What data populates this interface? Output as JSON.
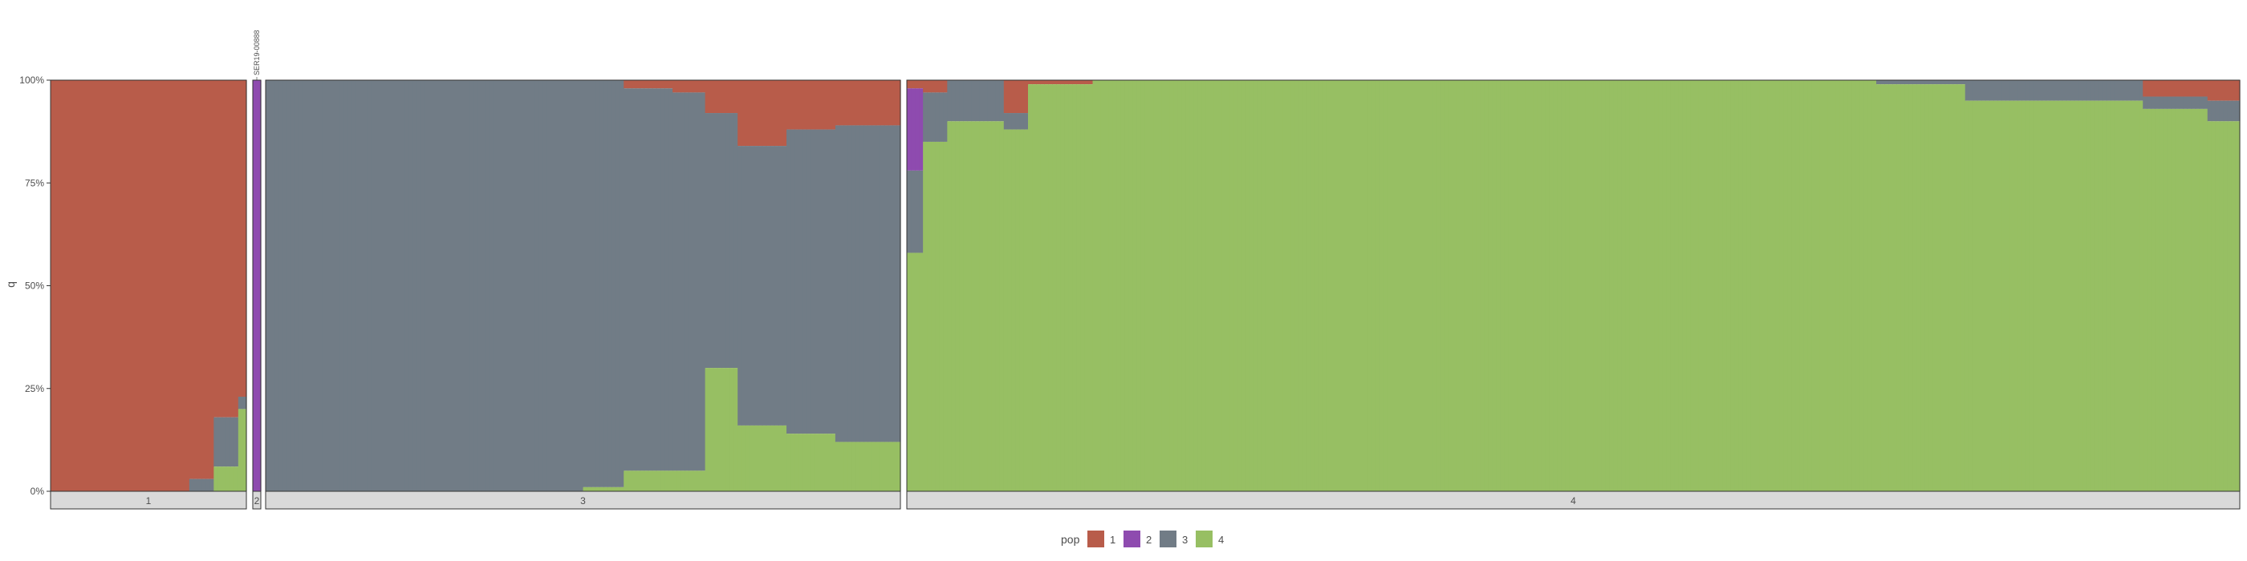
{
  "chart_data": {
    "type": "bar",
    "subtype": "stacked-100",
    "ylabel": "q",
    "ylim": [
      0,
      1
    ],
    "y_ticks": [
      "0%",
      "25%",
      "50%",
      "75%",
      "100%"
    ],
    "legend": {
      "title": "pop",
      "position": "bottom",
      "keys": [
        "1",
        "2",
        "3",
        "4"
      ]
    },
    "colors": {
      "1": "#B85C4A",
      "2": "#8E4BAF",
      "3": "#717C86",
      "4": "#97BF63"
    },
    "panels": [
      {
        "label": "1",
        "sample_prefix": "SER19-",
        "n": 48,
        "segments": [
          {
            "from": 0,
            "to": 34,
            "q": [
              1,
              0,
              0,
              0
            ]
          },
          {
            "from": 34,
            "to": 40,
            "q": [
              0.97,
              0,
              0.03,
              0
            ]
          },
          {
            "from": 40,
            "to": 46,
            "q": [
              0.82,
              0,
              0.12,
              0.06
            ]
          },
          {
            "from": 46,
            "to": 48,
            "q": [
              0.77,
              0,
              0.03,
              0.2
            ]
          }
        ]
      },
      {
        "label": "2",
        "sample_prefix": "SER19-",
        "n": 1,
        "sample_ids": [
          "SER19-00888"
        ],
        "segments": [
          {
            "from": 0,
            "to": 1,
            "q": [
              0,
              1,
              0,
              0
            ]
          }
        ]
      },
      {
        "label": "3",
        "sample_prefix": "SER11-",
        "n": 156,
        "segments": [
          {
            "from": 0,
            "to": 78,
            "q": [
              0,
              0,
              1,
              0
            ]
          },
          {
            "from": 78,
            "to": 88,
            "q": [
              0,
              0,
              0.99,
              0.01
            ]
          },
          {
            "from": 88,
            "to": 100,
            "q": [
              0.02,
              0,
              0.93,
              0.05
            ]
          },
          {
            "from": 100,
            "to": 108,
            "q": [
              0.03,
              0,
              0.92,
              0.05
            ]
          },
          {
            "from": 108,
            "to": 116,
            "q": [
              0.08,
              0,
              0.62,
              0.3
            ]
          },
          {
            "from": 116,
            "to": 128,
            "q": [
              0.16,
              0,
              0.68,
              0.16
            ]
          },
          {
            "from": 128,
            "to": 140,
            "q": [
              0.12,
              0,
              0.74,
              0.14
            ]
          },
          {
            "from": 140,
            "to": 156,
            "q": [
              0.11,
              0,
              0.77,
              0.12
            ]
          }
        ]
      },
      {
        "label": "4",
        "sample_prefix": "SER11-",
        "n": 330,
        "segments": [
          {
            "from": 0,
            "to": 4,
            "q": [
              0.02,
              0.2,
              0.2,
              0.58
            ]
          },
          {
            "from": 4,
            "to": 10,
            "q": [
              0.03,
              0,
              0.12,
              0.85
            ]
          },
          {
            "from": 10,
            "to": 24,
            "q": [
              0,
              0,
              0.1,
              0.9
            ]
          },
          {
            "from": 24,
            "to": 30,
            "q": [
              0.08,
              0,
              0.04,
              0.88
            ]
          },
          {
            "from": 30,
            "to": 46,
            "q": [
              0.01,
              0,
              0,
              0.99
            ]
          },
          {
            "from": 46,
            "to": 240,
            "q": [
              0,
              0,
              0,
              1
            ]
          },
          {
            "from": 240,
            "to": 262,
            "q": [
              0,
              0,
              0.01,
              0.99
            ]
          },
          {
            "from": 262,
            "to": 306,
            "q": [
              0,
              0,
              0.05,
              0.95
            ]
          },
          {
            "from": 306,
            "to": 322,
            "q": [
              0.04,
              0,
              0.03,
              0.93
            ]
          },
          {
            "from": 322,
            "to": 330,
            "q": [
              0.05,
              0,
              0.05,
              0.9
            ]
          }
        ]
      }
    ]
  }
}
